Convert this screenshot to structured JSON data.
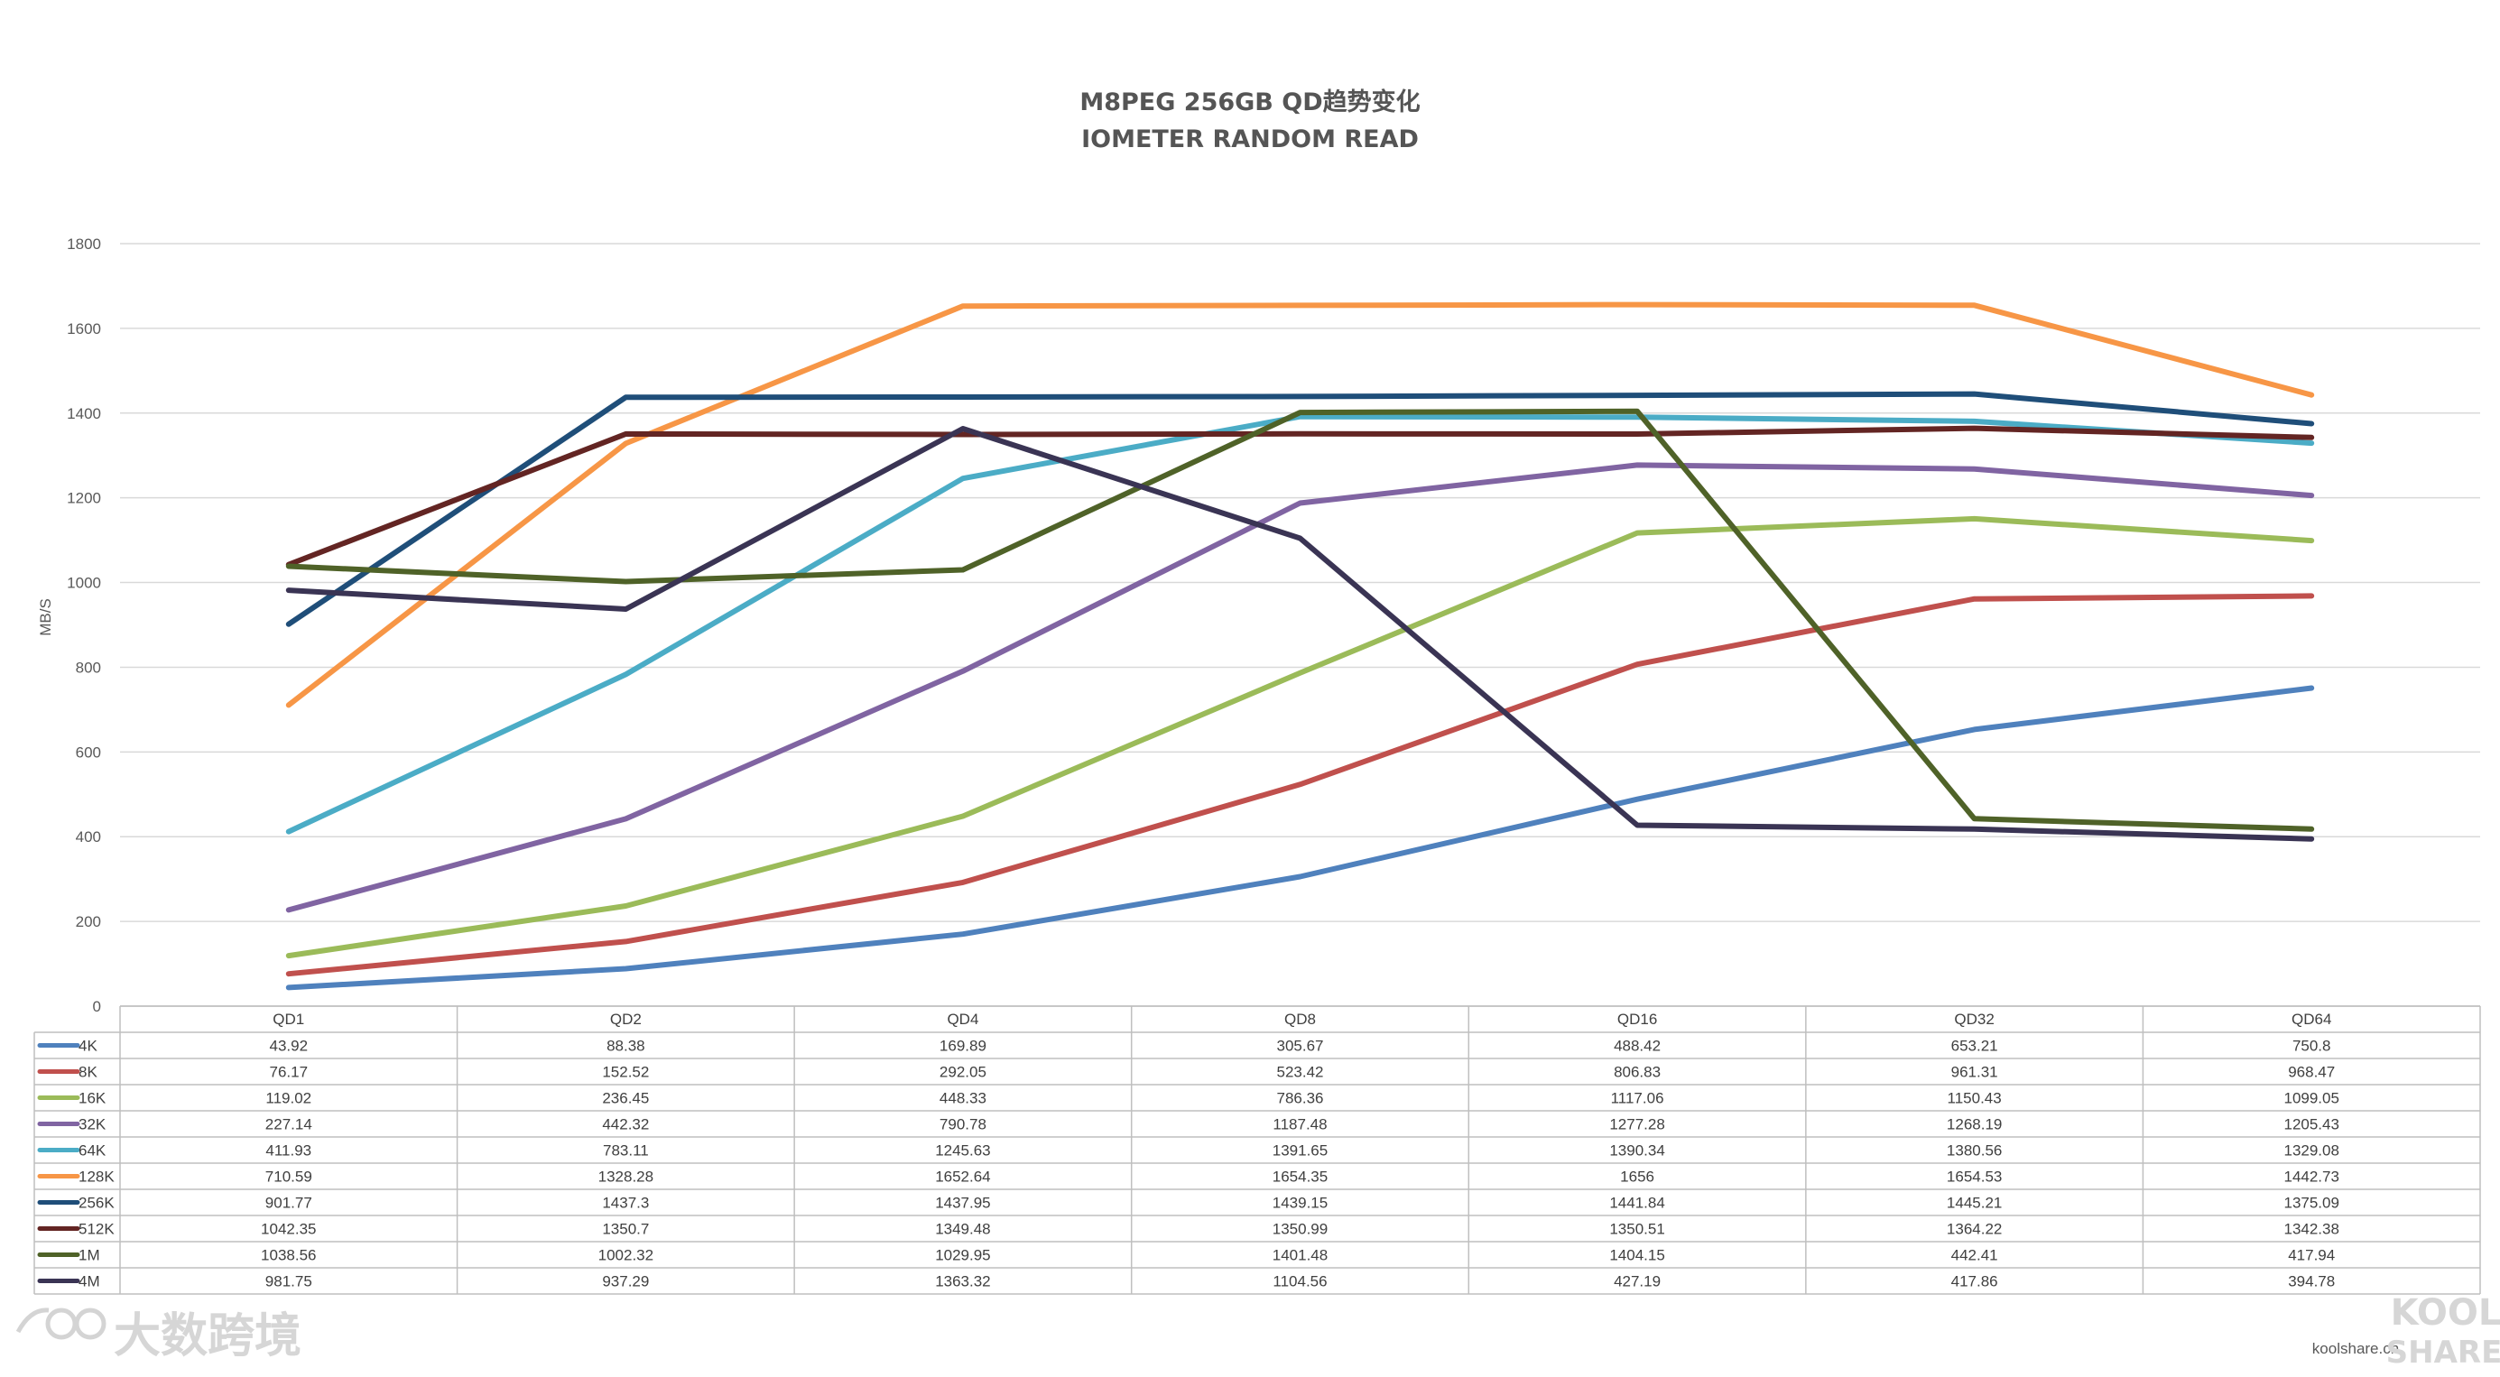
{
  "chart_data": {
    "type": "line",
    "title": "M8PEG 256GB QD趋势变化",
    "subtitle": "IOMETER RANDOM READ",
    "ylabel": "MB/S",
    "xlabel": "",
    "ylim": [
      0,
      1800
    ],
    "yticks": [
      0,
      200,
      400,
      600,
      800,
      1000,
      1200,
      1400,
      1600,
      1800
    ],
    "categories": [
      "QD1",
      "QD2",
      "QD4",
      "QD8",
      "QD16",
      "QD32",
      "QD64"
    ],
    "grid": true,
    "legend": "data-table-left",
    "series": [
      {
        "name": "4K",
        "color": "#4f81bd",
        "values": [
          43.92,
          88.38,
          169.89,
          305.67,
          488.42,
          653.21,
          750.8
        ]
      },
      {
        "name": "8K",
        "color": "#c0504d",
        "values": [
          76.17,
          152.52,
          292.05,
          523.42,
          806.83,
          961.31,
          968.47
        ]
      },
      {
        "name": "16K",
        "color": "#9bbb59",
        "values": [
          119.02,
          236.45,
          448.33,
          786.36,
          1117.06,
          1150.43,
          1099.05
        ]
      },
      {
        "name": "32K",
        "color": "#8064a2",
        "values": [
          227.14,
          442.32,
          790.78,
          1187.48,
          1277.28,
          1268.19,
          1205.43
        ]
      },
      {
        "name": "64K",
        "color": "#4bacc6",
        "values": [
          411.93,
          783.11,
          1245.63,
          1391.65,
          1390.34,
          1380.56,
          1329.08
        ]
      },
      {
        "name": "128K",
        "color": "#f79646",
        "values": [
          710.59,
          1328.28,
          1652.64,
          1654.35,
          1656,
          1654.53,
          1442.73
        ]
      },
      {
        "name": "256K",
        "color": "#1f4e79",
        "values": [
          901.77,
          1437.3,
          1437.95,
          1439.15,
          1441.84,
          1445.21,
          1375.09
        ]
      },
      {
        "name": "512K",
        "color": "#632523",
        "values": [
          1042.35,
          1350.7,
          1349.48,
          1350.99,
          1350.51,
          1364.22,
          1342.38
        ]
      },
      {
        "name": "1M",
        "color": "#4f6228",
        "values": [
          1038.56,
          1002.32,
          1029.95,
          1401.48,
          1404.15,
          442.41,
          417.94
        ]
      },
      {
        "name": "4M",
        "color": "#3a3454",
        "values": [
          981.75,
          937.29,
          1363.32,
          1104.56,
          427.19,
          417.86,
          394.78
        ]
      }
    ]
  },
  "watermark": {
    "left_text": "大数跨境",
    "right_brand_top": "KOOL",
    "right_brand_bottom": "SHARE",
    "right_site": "koolshare.cn"
  }
}
